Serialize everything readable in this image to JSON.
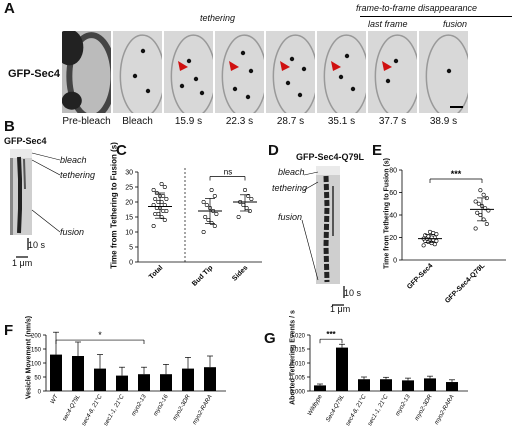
{
  "panels": {
    "A": {
      "letter": "A",
      "row_label": "GFP-Sec4",
      "tethering_label": "tethering",
      "disappear_label": "frame-to-frame disappearance",
      "last_frame_label": "last frame",
      "fusion_label": "fusion",
      "times": [
        "Pre-bleach",
        "Bleach",
        "15.9 s",
        "22.3 s",
        "28.7 s",
        "35.1 s",
        "37.7 s",
        "38.9 s"
      ]
    },
    "B": {
      "letter": "B",
      "title": "GFP-Sec4",
      "bleach": "bleach",
      "tethering": "tethering",
      "fusion": "fusion",
      "time_scale": "10 s",
      "space_scale": "1 μm"
    },
    "C": {
      "letter": "C",
      "ylabel": "Time from Tethering to Fusion (s)",
      "yticks": [
        "0",
        "5",
        "10",
        "15",
        "20",
        "25",
        "30"
      ],
      "categories": [
        "Total",
        "Bud Tip",
        "Sides"
      ],
      "sig": "ns"
    },
    "D": {
      "letter": "D",
      "title": "GFP-Sec4-Q79L",
      "bleach": "bleach",
      "tethering": "tethering",
      "fusion": "fusion",
      "time_scale": "10 s",
      "space_scale": "1 μm"
    },
    "E": {
      "letter": "E",
      "ylabel": "Time from Tethering to Fusion (s)",
      "yticks": [
        "0",
        "20",
        "40",
        "60",
        "80"
      ],
      "categories": [
        "GFP-Sec4",
        "GFP-Sec4-Q79L"
      ],
      "sig": "***"
    },
    "F": {
      "letter": "F",
      "ylabel": "Vesicle Movement (nm/s)",
      "yticks": [
        "0",
        "50",
        "100",
        "150",
        "200"
      ],
      "categories": [
        "WT",
        "sec4-Q79L",
        "sec4-8, 21°C",
        "sec1-1, 21°C",
        "myo2-13",
        "myo2-16",
        "myo2-3DR",
        "myo2-RARA"
      ],
      "sig": "*"
    },
    "G": {
      "letter": "G",
      "ylabel": "Aborted Tethering Events / s",
      "yticks": [
        "0.000",
        "0.005",
        "0.010",
        "0.015",
        "0.020"
      ],
      "categories": [
        "Wildtype",
        "Sec4-Q79L",
        "sec4-8, 21°C",
        "sec1-1, 21°C",
        "myo2-13",
        "myo2-3DR",
        "myo2-RARA"
      ],
      "sig": "***"
    }
  },
  "chart_data": [
    {
      "panel": "C",
      "type": "scatter",
      "ylabel": "Time from Tethering to Fusion (s)",
      "ylim": [
        0,
        30
      ],
      "categories": [
        "Total",
        "Bud Tip",
        "Sides"
      ],
      "series": [
        {
          "category": "Total",
          "values": [
            12,
            14,
            15,
            16,
            16,
            17,
            17,
            18,
            18,
            19,
            19,
            20,
            20,
            21,
            21,
            22,
            22,
            23,
            24,
            25,
            26
          ],
          "mean": 18.5
        },
        {
          "category": "Bud Tip",
          "values": [
            10,
            12,
            13,
            14,
            15,
            16,
            17,
            18,
            19,
            20,
            22,
            24
          ],
          "mean": 17
        },
        {
          "category": "Sides",
          "values": [
            15,
            17,
            18,
            19,
            20,
            21,
            22,
            24
          ],
          "mean": 20
        }
      ],
      "significance": "ns"
    },
    {
      "panel": "E",
      "type": "scatter",
      "ylabel": "Time from Tethering to Fusion (s)",
      "ylim": [
        0,
        80
      ],
      "categories": [
        "GFP-Sec4",
        "GFP-Sec4-Q79L"
      ],
      "series": [
        {
          "category": "GFP-Sec4",
          "values": [
            13,
            14,
            15,
            16,
            17,
            17,
            18,
            18,
            19,
            19,
            20,
            20,
            21,
            22,
            23,
            24,
            25
          ],
          "mean": 19
        },
        {
          "category": "GFP-Sec4-Q79L",
          "values": [
            28,
            32,
            36,
            40,
            42,
            44,
            46,
            48,
            50,
            52,
            55,
            58,
            62
          ],
          "mean": 45
        }
      ],
      "significance": "***"
    },
    {
      "panel": "F",
      "type": "bar",
      "ylabel": "Vesicle Movement (nm/s)",
      "ylim": [
        0,
        200
      ],
      "categories": [
        "WT",
        "sec4-Q79L",
        "sec4-8, 21°C",
        "sec1-1, 21°C",
        "myo2-13",
        "myo2-16",
        "myo2-3DR",
        "myo2-RARA"
      ],
      "values": [
        130,
        125,
        80,
        55,
        60,
        60,
        80,
        85
      ],
      "errors": [
        80,
        50,
        50,
        30,
        25,
        35,
        40,
        40
      ],
      "significance": "*"
    },
    {
      "panel": "G",
      "type": "bar",
      "ylabel": "Aborted Tethering Events / s",
      "ylim": [
        0,
        0.02
      ],
      "categories": [
        "Wildtype",
        "Sec4-Q79L",
        "sec4-8, 21°C",
        "sec1-1, 21°C",
        "myo2-13",
        "myo2-3DR",
        "myo2-RARA"
      ],
      "values": [
        0.002,
        0.0155,
        0.0042,
        0.0042,
        0.0038,
        0.0045,
        0.0032
      ],
      "errors": [
        0.0005,
        0.0012,
        0.0008,
        0.0007,
        0.0008,
        0.0008,
        0.0008
      ],
      "significance": "***"
    }
  ]
}
